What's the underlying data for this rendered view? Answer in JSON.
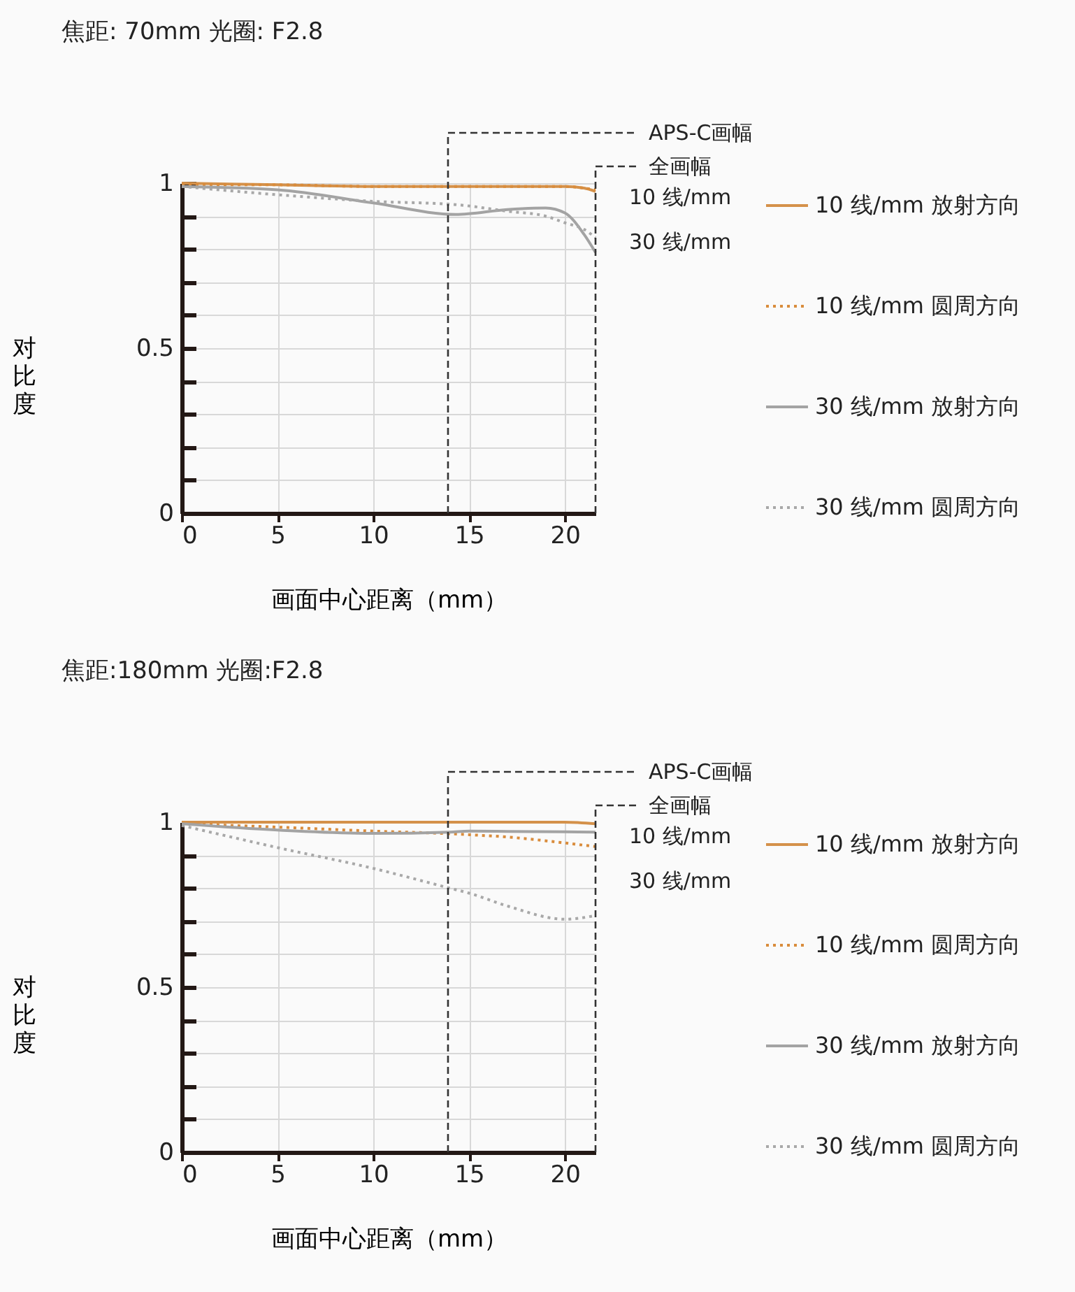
{
  "chart_data": [
    {
      "type": "line",
      "title": "焦距: 70mm  光圈: F2.8",
      "xlabel": "画面中心距离（mm）",
      "ylabel": "对比度",
      "xlim": [
        0,
        21.6
      ],
      "xticks": [
        0,
        5,
        10,
        15,
        20
      ],
      "ylim": [
        0,
        1
      ],
      "yticks": [
        0,
        {
          "value": 0.1,
          "label": null
        },
        {
          "value": 0.2,
          "label": null
        },
        {
          "value": 0.3,
          "label": null
        },
        {
          "value": 0.4,
          "label": null
        },
        0.5,
        {
          "value": 0.6,
          "label": null
        },
        {
          "value": 0.7,
          "label": null
        },
        {
          "value": 0.8,
          "label": null
        },
        {
          "value": 0.9,
          "label": null
        },
        1
      ],
      "grid": true,
      "legend": "right",
      "x": [
        0,
        5,
        10,
        14.3,
        17,
        19,
        20,
        21,
        21.6
      ],
      "series": [
        {
          "name": "10 线/mm 放射方向",
          "color": "#d4914a",
          "line_style": "solid",
          "values": [
            1,
            0.995,
            0.99,
            0.99,
            0.99,
            0.99,
            0.99,
            0.985,
            0.975
          ]
        },
        {
          "name": "10 线/mm 圆周方向",
          "color": "#d98c3c",
          "line_style": "dotted",
          "values": [
            0.995,
            0.995,
            0.99,
            0.99,
            0.99,
            0.99,
            0.99,
            0.985,
            0.98
          ]
        },
        {
          "name": "30 线/mm 放射方向",
          "color": "#a3a3a3",
          "line_style": "solid",
          "values": [
            0.99,
            0.98,
            0.94,
            0.905,
            0.92,
            0.925,
            0.91,
            0.845,
            0.79
          ]
        },
        {
          "name": "30 线/mm 圆周方向",
          "color": "#a8a8a8",
          "line_style": "dotted",
          "values": [
            0.99,
            0.965,
            0.945,
            0.935,
            0.915,
            0.9,
            0.88,
            0.86,
            0.835
          ]
        }
      ],
      "ref_lines": [
        {
          "axis": "x",
          "value": 13.9,
          "label": "APS-C画幅",
          "line_style": "dashed"
        },
        {
          "axis": "x",
          "value": 21.6,
          "label": "全画幅",
          "line_style": "dashed"
        }
      ],
      "annotations": [
        "10 线/mm",
        "30 线/mm"
      ]
    },
    {
      "type": "line",
      "title": "焦距:180mm  光圈:F2.8",
      "xlabel": "画面中心距离（mm）",
      "ylabel": "对比度",
      "xlim": [
        0,
        21.6
      ],
      "xticks": [
        0,
        5,
        10,
        15,
        20
      ],
      "ylim": [
        0,
        1
      ],
      "yticks": [
        0,
        {
          "value": 0.1,
          "label": null
        },
        {
          "value": 0.2,
          "label": null
        },
        {
          "value": 0.3,
          "label": null
        },
        {
          "value": 0.4,
          "label": null
        },
        0.5,
        {
          "value": 0.6,
          "label": null
        },
        {
          "value": 0.7,
          "label": null
        },
        {
          "value": 0.8,
          "label": null
        },
        {
          "value": 0.9,
          "label": null
        },
        1
      ],
      "grid": true,
      "legend": "right",
      "x": [
        0,
        5,
        10,
        14,
        15,
        17,
        20,
        21.6
      ],
      "series": [
        {
          "name": "10 线/mm 放射方向",
          "color": "#d4914a",
          "line_style": "solid",
          "values": [
            1,
            1,
            1,
            1,
            1,
            1,
            1,
            0.995
          ]
        },
        {
          "name": "10 线/mm 圆周方向",
          "color": "#d98c3c",
          "line_style": "dotted",
          "values": [
            0.995,
            0.985,
            0.973,
            0.965,
            0.962,
            0.955,
            0.937,
            0.926
          ]
        },
        {
          "name": "30 线/mm 放射方向",
          "color": "#a3a3a3",
          "line_style": "solid",
          "values": [
            0.995,
            0.976,
            0.966,
            0.97,
            0.973,
            0.972,
            0.971,
            0.97
          ]
        },
        {
          "name": "30 线/mm 圆周方向",
          "color": "#a8a8a8",
          "line_style": "dotted",
          "values": [
            0.99,
            0.923,
            0.86,
            0.8,
            0.785,
            0.746,
            0.706,
            0.717
          ]
        }
      ],
      "ref_lines": [
        {
          "axis": "x",
          "value": 13.9,
          "label": "APS-C画幅",
          "line_style": "dashed"
        },
        {
          "axis": "x",
          "value": 21.6,
          "label": "全画幅",
          "line_style": "dashed"
        }
      ],
      "annotations": [
        "10 线/mm",
        "30 线/mm"
      ]
    }
  ]
}
